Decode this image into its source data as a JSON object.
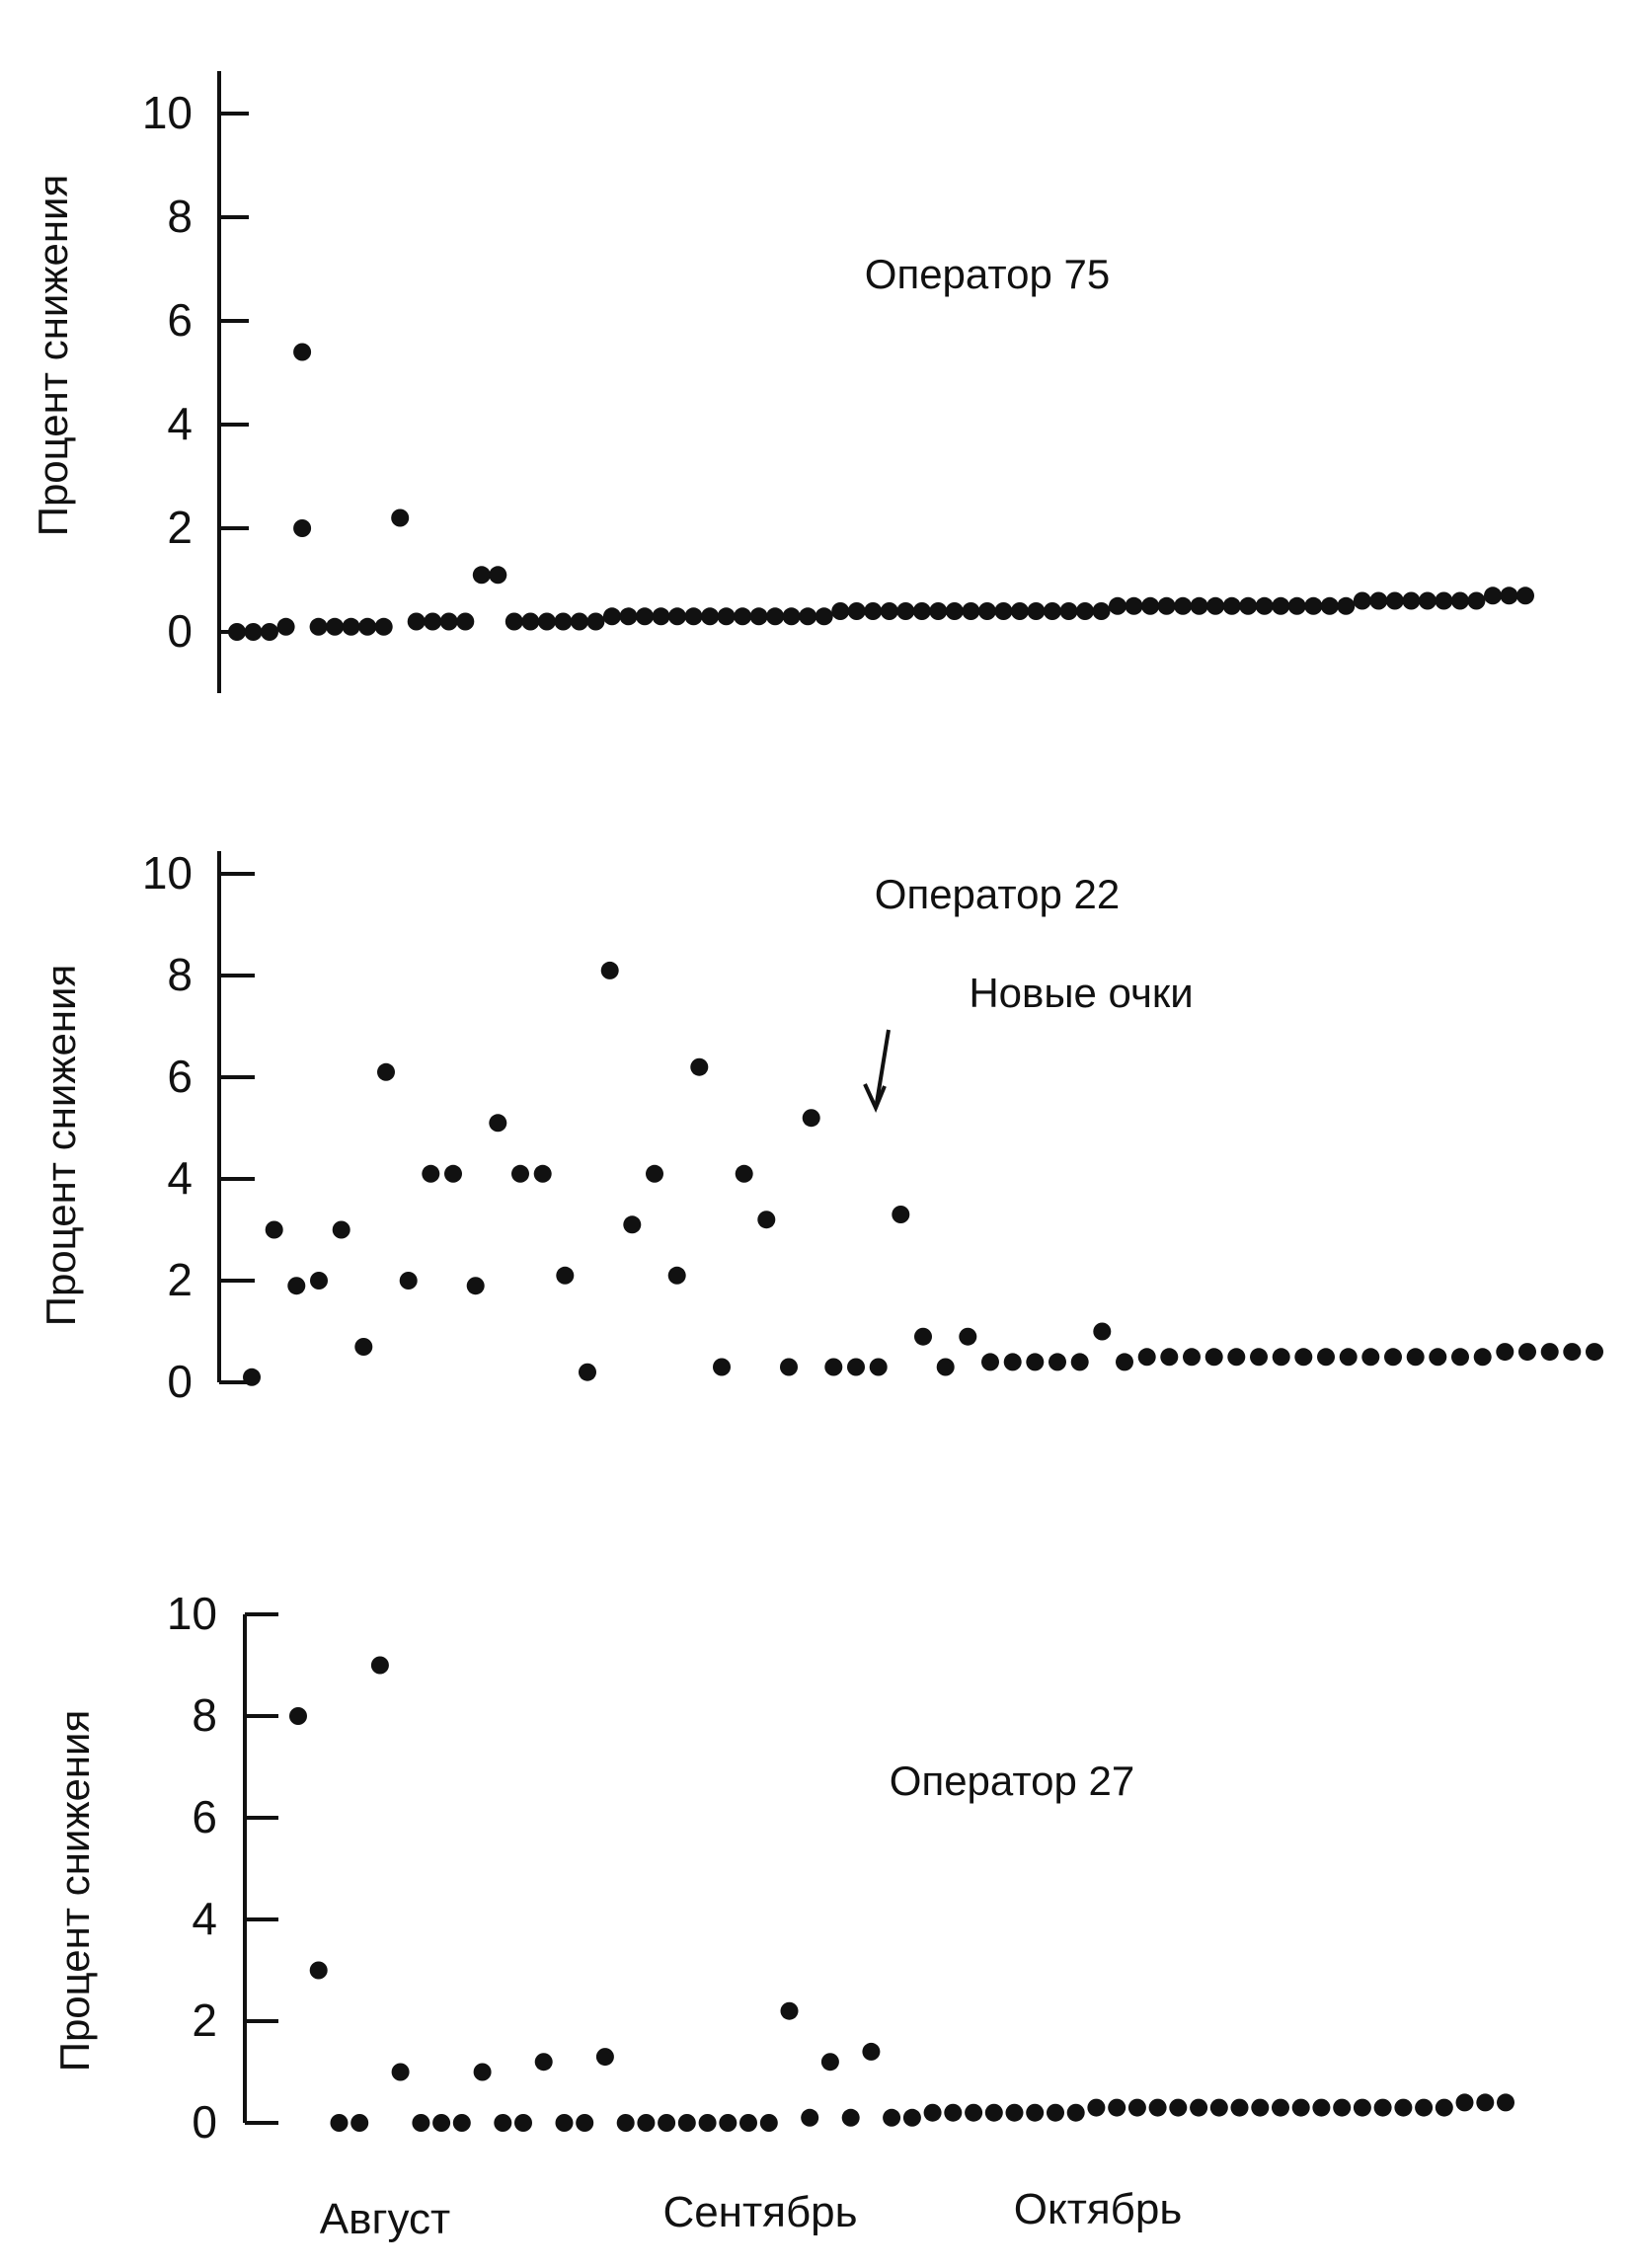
{
  "ylabel": "Процент снижения",
  "month_labels": [
    "Август",
    "Сентябрь",
    "Октябрь"
  ],
  "chart_data": [
    {
      "type": "scatter",
      "title": "Оператор 75",
      "ylabel": "Процент снижения",
      "yticks": [
        0,
        2,
        4,
        6,
        8,
        10
      ],
      "ylim": [
        -1,
        10.5
      ],
      "grid": false,
      "points": [
        [
          1,
          0
        ],
        [
          2,
          0
        ],
        [
          3,
          0
        ],
        [
          4,
          0.1
        ],
        [
          5,
          2
        ],
        [
          5,
          5.4
        ],
        [
          6,
          0.1
        ],
        [
          7,
          0.1
        ],
        [
          8,
          0.1
        ],
        [
          9,
          0.1
        ],
        [
          10,
          0.1
        ],
        [
          11,
          2.2
        ],
        [
          12,
          0.2
        ],
        [
          13,
          0.2
        ],
        [
          14,
          0.2
        ],
        [
          15,
          0.2
        ],
        [
          16,
          1.1
        ],
        [
          17,
          1.1
        ],
        [
          18,
          0.2
        ],
        [
          19,
          0.2
        ],
        [
          20,
          0.2
        ],
        [
          21,
          0.2
        ],
        [
          22,
          0.2
        ],
        [
          23,
          0.2
        ],
        [
          24,
          0.3
        ],
        [
          25,
          0.3
        ],
        [
          26,
          0.3
        ],
        [
          27,
          0.3
        ],
        [
          28,
          0.3
        ],
        [
          29,
          0.3
        ],
        [
          30,
          0.3
        ],
        [
          31,
          0.3
        ],
        [
          32,
          0.3
        ],
        [
          33,
          0.3
        ],
        [
          34,
          0.3
        ],
        [
          35,
          0.3
        ],
        [
          36,
          0.3
        ],
        [
          37,
          0.3
        ],
        [
          38,
          0.4
        ],
        [
          39,
          0.4
        ],
        [
          40,
          0.4
        ],
        [
          41,
          0.4
        ],
        [
          42,
          0.4
        ],
        [
          43,
          0.4
        ],
        [
          44,
          0.4
        ],
        [
          45,
          0.4
        ],
        [
          46,
          0.4
        ],
        [
          47,
          0.4
        ],
        [
          48,
          0.4
        ],
        [
          49,
          0.4
        ],
        [
          50,
          0.4
        ],
        [
          51,
          0.4
        ],
        [
          52,
          0.4
        ],
        [
          53,
          0.4
        ],
        [
          54,
          0.4
        ],
        [
          55,
          0.5
        ],
        [
          56,
          0.5
        ],
        [
          57,
          0.5
        ],
        [
          58,
          0.5
        ],
        [
          59,
          0.5
        ],
        [
          60,
          0.5
        ],
        [
          61,
          0.5
        ],
        [
          62,
          0.5
        ],
        [
          63,
          0.5
        ],
        [
          64,
          0.5
        ],
        [
          65,
          0.5
        ],
        [
          66,
          0.5
        ],
        [
          67,
          0.5
        ],
        [
          68,
          0.5
        ],
        [
          69,
          0.5
        ],
        [
          70,
          0.6
        ],
        [
          71,
          0.6
        ],
        [
          72,
          0.6
        ],
        [
          73,
          0.6
        ],
        [
          74,
          0.6
        ],
        [
          75,
          0.6
        ],
        [
          76,
          0.6
        ],
        [
          77,
          0.6
        ],
        [
          78,
          0.7
        ],
        [
          79,
          0.7
        ],
        [
          80,
          0.7
        ]
      ]
    },
    {
      "type": "scatter",
      "title": "Оператор 22",
      "annotation": "Новые очки",
      "annotation_x": 35,
      "ylabel": "Процент снижения",
      "yticks": [
        0,
        2,
        4,
        6,
        8,
        10
      ],
      "ylim": [
        0,
        10.5
      ],
      "grid": false,
      "points": [
        [
          1,
          0.1
        ],
        [
          2,
          3
        ],
        [
          3,
          1.9
        ],
        [
          4,
          2
        ],
        [
          5,
          3
        ],
        [
          6,
          0.7
        ],
        [
          7,
          6.1
        ],
        [
          8,
          2
        ],
        [
          9,
          4.1
        ],
        [
          10,
          4.1
        ],
        [
          11,
          1.9
        ],
        [
          12,
          5.1
        ],
        [
          13,
          4.1
        ],
        [
          14,
          4.1
        ],
        [
          15,
          2.1
        ],
        [
          16,
          0.2
        ],
        [
          17,
          8.1
        ],
        [
          18,
          3.1
        ],
        [
          19,
          4.1
        ],
        [
          20,
          2.1
        ],
        [
          21,
          6.2
        ],
        [
          22,
          0.3
        ],
        [
          23,
          4.1
        ],
        [
          24,
          3.2
        ],
        [
          25,
          0.3
        ],
        [
          26,
          5.2
        ],
        [
          27,
          0.3
        ],
        [
          28,
          0.3
        ],
        [
          29,
          0.3
        ],
        [
          30,
          3.3
        ],
        [
          31,
          0.9
        ],
        [
          32,
          0.3
        ],
        [
          33,
          0.9
        ],
        [
          34,
          0.4
        ],
        [
          35,
          0.4
        ],
        [
          36,
          0.4
        ],
        [
          37,
          0.4
        ],
        [
          38,
          0.4
        ],
        [
          39,
          1
        ],
        [
          40,
          0.4
        ],
        [
          41,
          0.5
        ],
        [
          42,
          0.5
        ],
        [
          43,
          0.5
        ],
        [
          44,
          0.5
        ],
        [
          45,
          0.5
        ],
        [
          46,
          0.5
        ],
        [
          47,
          0.5
        ],
        [
          48,
          0.5
        ],
        [
          49,
          0.5
        ],
        [
          50,
          0.5
        ],
        [
          51,
          0.5
        ],
        [
          52,
          0.5
        ],
        [
          53,
          0.5
        ],
        [
          54,
          0.5
        ],
        [
          55,
          0.5
        ],
        [
          56,
          0.5
        ],
        [
          57,
          0.6
        ],
        [
          58,
          0.6
        ],
        [
          59,
          0.6
        ],
        [
          60,
          0.6
        ],
        [
          61,
          0.6
        ]
      ]
    },
    {
      "type": "scatter",
      "title": "Оператор 27",
      "ylabel": "Процент снижения",
      "yticks": [
        0,
        2,
        4,
        6,
        8,
        10
      ],
      "ylim": [
        0,
        10.5
      ],
      "grid": false,
      "xticklabels": [
        "Август",
        "Сентябрь",
        "Октябрь"
      ],
      "points": [
        [
          1,
          8
        ],
        [
          2,
          3
        ],
        [
          3,
          0
        ],
        [
          4,
          0
        ],
        [
          5,
          9
        ],
        [
          6,
          1
        ],
        [
          7,
          0
        ],
        [
          8,
          0
        ],
        [
          9,
          0
        ],
        [
          10,
          1
        ],
        [
          11,
          0
        ],
        [
          12,
          0
        ],
        [
          13,
          1.2
        ],
        [
          14,
          0
        ],
        [
          15,
          0
        ],
        [
          16,
          1.3
        ],
        [
          17,
          0
        ],
        [
          18,
          0
        ],
        [
          19,
          0
        ],
        [
          20,
          0
        ],
        [
          21,
          0
        ],
        [
          22,
          0
        ],
        [
          23,
          0
        ],
        [
          24,
          0
        ],
        [
          25,
          2.2
        ],
        [
          26,
          0.1
        ],
        [
          27,
          1.2
        ],
        [
          28,
          0.1
        ],
        [
          29,
          1.4
        ],
        [
          30,
          0.1
        ],
        [
          31,
          0.1
        ],
        [
          32,
          0.2
        ],
        [
          33,
          0.2
        ],
        [
          34,
          0.2
        ],
        [
          35,
          0.2
        ],
        [
          36,
          0.2
        ],
        [
          37,
          0.2
        ],
        [
          38,
          0.2
        ],
        [
          39,
          0.2
        ],
        [
          40,
          0.3
        ],
        [
          41,
          0.3
        ],
        [
          42,
          0.3
        ],
        [
          43,
          0.3
        ],
        [
          44,
          0.3
        ],
        [
          45,
          0.3
        ],
        [
          46,
          0.3
        ],
        [
          47,
          0.3
        ],
        [
          48,
          0.3
        ],
        [
          49,
          0.3
        ],
        [
          50,
          0.3
        ],
        [
          51,
          0.3
        ],
        [
          52,
          0.3
        ],
        [
          53,
          0.3
        ],
        [
          54,
          0.3
        ],
        [
          55,
          0.3
        ],
        [
          56,
          0.3
        ],
        [
          57,
          0.3
        ],
        [
          58,
          0.4
        ],
        [
          59,
          0.4
        ],
        [
          60,
          0.4
        ]
      ]
    }
  ]
}
